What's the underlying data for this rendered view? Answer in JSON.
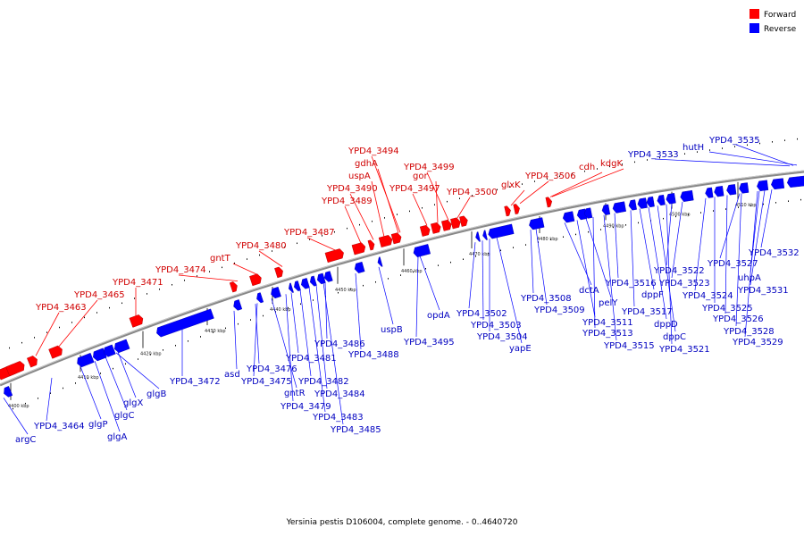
{
  "caption": "Yersinia pestis D106004, complete genome. - 0..4640720",
  "legend": [
    {
      "label": "Forward",
      "color": "#ff0000"
    },
    {
      "label": "Reverse",
      "color": "#0000ff"
    }
  ],
  "ticks": [
    "4400 kbp",
    "4410 kbp",
    "4420 kbp",
    "4430 kbp",
    "4440 kbp",
    "4450 kbp",
    "4460 kbp",
    "4470 kbp",
    "4480 kbp",
    "4490 kbp",
    "4500 kbp",
    "4510 kbp"
  ],
  "forward_labels": [
    "YPD4_3463",
    "YPD4_3465",
    "YPD4_3471",
    "YPD4_3474",
    "gntT",
    "YPD4_3480",
    "YPD4_3487",
    "YPD4_3489",
    "YPD4_3490",
    "uspA",
    "gdhA",
    "YPD4_3494",
    "YPD4_3497",
    "gor",
    "YPD4_3499",
    "YPD4_3500",
    "glxK",
    "YPD4_3506",
    "cdh",
    "kdgK"
  ],
  "reverse_labels": [
    "argC",
    "YPD4_3464",
    "glgP",
    "glgA",
    "glgC",
    "glgX",
    "glgB",
    "YPD4_3472",
    "asd",
    "YPD4_3476",
    "YPD4_3475",
    "gntR",
    "YPD4_3479",
    "YPD4_3481",
    "YPD4_3482",
    "YPD4_3483",
    "YPD4_3484",
    "YPD4_3485",
    "YPD4_3486",
    "YPD4_3488",
    "uspB",
    "YPD4_3495",
    "opdA",
    "YPD4_3502",
    "YPD4_3503",
    "YPD4_3504",
    "yapE",
    "YPD4_3508",
    "YPD4_3509",
    "dctA",
    "YPD4_3511",
    "pelY",
    "YPD4_3513",
    "YPD4_3515",
    "YPD4_3516",
    "YPD4_3517",
    "dppF",
    "dppD",
    "dppC",
    "YPD4_3521",
    "YPD4_3522",
    "YPD4_3523",
    "YPD4_3524",
    "YPD4_3525",
    "YPD4_3526",
    "YPD4_3527",
    "YPD4_3528",
    "YPD4_3529",
    "uhpA",
    "YPD4_3531",
    "YPD4_3532",
    "YPD4_3533",
    "hutH",
    "YPD4_3535"
  ]
}
